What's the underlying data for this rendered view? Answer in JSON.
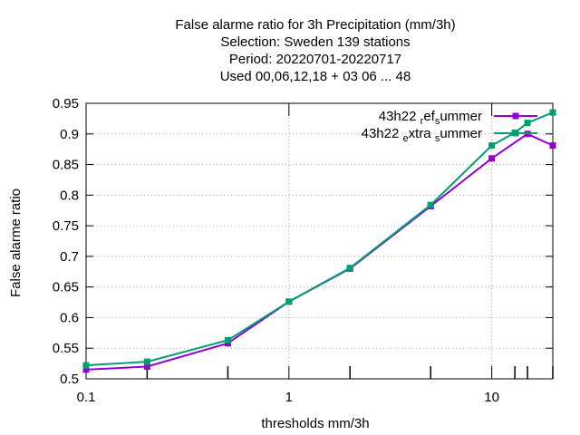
{
  "chart_data": {
    "type": "line",
    "title_lines": [
      "False alarme ratio  for 3h Precipitation (mm/3h)",
      "Selection: Sweden    139 stations",
      "Period: 20220701-20220717",
      "Used  00,06,12,18  + 03 06 ... 48"
    ],
    "xlabel": "thresholds mm/3h",
    "ylabel": "False alarme ratio",
    "x_scale": "log",
    "xlim": [
      0.1,
      20
    ],
    "ylim": [
      0.5,
      0.95
    ],
    "x_ticks": [
      {
        "value": 0.1,
        "label": "0.1"
      },
      {
        "value": 1,
        "label": "1"
      },
      {
        "value": 10,
        "label": "10"
      }
    ],
    "x_minor_ticks": [
      0.2,
      0.5,
      2,
      5,
      13,
      15,
      20
    ],
    "y_ticks": [
      {
        "value": 0.5,
        "label": "0.5"
      },
      {
        "value": 0.55,
        "label": "0.55"
      },
      {
        "value": 0.6,
        "label": "0.6"
      },
      {
        "value": 0.65,
        "label": "0.65"
      },
      {
        "value": 0.7,
        "label": "0.7"
      },
      {
        "value": 0.75,
        "label": "0.75"
      },
      {
        "value": 0.8,
        "label": "0.8"
      },
      {
        "value": 0.85,
        "label": "0.85"
      },
      {
        "value": 0.9,
        "label": "0.9"
      },
      {
        "value": 0.95,
        "label": "0.95"
      }
    ],
    "grid": true,
    "legend_position": "top-right",
    "series": [
      {
        "name": "43h22 ref summer",
        "legend_parts": [
          [
            "43h22 ",
            ""
          ],
          [
            "r",
            "sub"
          ],
          [
            "ef",
            ""
          ],
          [
            "s",
            "sub"
          ],
          [
            "ummer",
            ""
          ]
        ],
        "color": "#9400d3",
        "marker": "filled-square",
        "x": [
          0.1,
          0.2,
          0.5,
          1,
          2,
          5,
          10,
          15,
          20
        ],
        "y": [
          0.515,
          0.52,
          0.558,
          0.626,
          0.68,
          0.782,
          0.86,
          0.9,
          0.881
        ]
      },
      {
        "name": "43h22 extra summer",
        "legend_parts": [
          [
            "43h22 ",
            ""
          ],
          [
            "e",
            "sub"
          ],
          [
            "xtra ",
            ""
          ],
          [
            "s",
            "sub"
          ],
          [
            "ummer",
            ""
          ]
        ],
        "color": "#009e73",
        "marker": "filled-square",
        "x": [
          0.1,
          0.2,
          0.5,
          1,
          2,
          5,
          10,
          13,
          15,
          20
        ],
        "y": [
          0.522,
          0.528,
          0.563,
          0.626,
          0.681,
          0.784,
          0.881,
          0.902,
          0.918,
          0.935
        ]
      }
    ]
  }
}
